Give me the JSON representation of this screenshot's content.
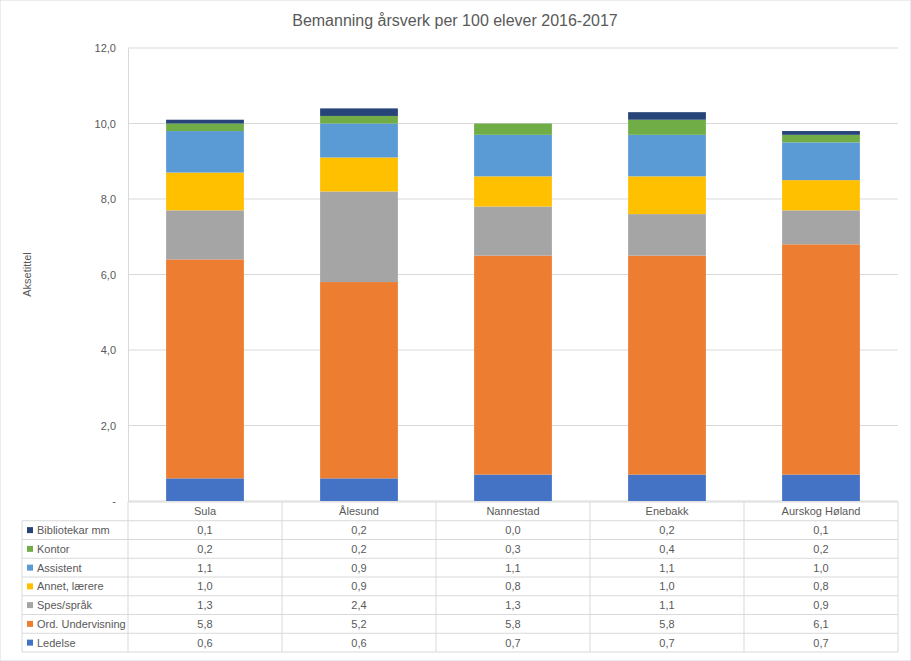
{
  "chart_data": {
    "type": "bar",
    "stacked": true,
    "grid": true,
    "title": "Bemanning årsverk per 100 elever 2016-2017",
    "y_label": "Aksetittel",
    "categories": [
      "Sula",
      "Ålesund",
      "Nannestad",
      "Enebakk",
      "Aurskog Høland"
    ],
    "ylim": [
      0,
      12
    ],
    "yticks": [
      {
        "value": 0,
        "label": "-"
      },
      {
        "value": 2,
        "label": "2,0"
      },
      {
        "value": 4,
        "label": "4,0"
      },
      {
        "value": 6,
        "label": "6,0"
      },
      {
        "value": 8,
        "label": "8,0"
      },
      {
        "value": 10,
        "label": "10,0"
      },
      {
        "value": 12,
        "label": "12,0"
      }
    ],
    "series": [
      {
        "name": "Ledelse",
        "color": "#4472c4",
        "values": [
          0.6,
          0.6,
          0.7,
          0.7,
          0.7
        ],
        "value_labels": [
          "0,6",
          "0,6",
          "0,7",
          "0,7",
          "0,7"
        ]
      },
      {
        "name": "Ord. Undervisning",
        "color": "#ed7d31",
        "values": [
          5.8,
          5.2,
          5.8,
          5.8,
          6.1
        ],
        "value_labels": [
          "5,8",
          "5,2",
          "5,8",
          "5,8",
          "6,1"
        ]
      },
      {
        "name": "Spes/språk",
        "color": "#a5a5a5",
        "values": [
          1.3,
          2.4,
          1.3,
          1.1,
          0.9
        ],
        "value_labels": [
          "1,3",
          "2,4",
          "1,3",
          "1,1",
          "0,9"
        ]
      },
      {
        "name": "Annet, lærere",
        "color": "#ffc000",
        "values": [
          1.0,
          0.9,
          0.8,
          1.0,
          0.8
        ],
        "value_labels": [
          "1,0",
          "0,9",
          "0,8",
          "1,0",
          "0,8"
        ]
      },
      {
        "name": "Assistent",
        "color": "#5b9bd5",
        "values": [
          1.1,
          0.9,
          1.1,
          1.1,
          1.0
        ],
        "value_labels": [
          "1,1",
          "0,9",
          "1,1",
          "1,1",
          "1,0"
        ]
      },
      {
        "name": "Kontor",
        "color": "#70ad47",
        "values": [
          0.2,
          0.2,
          0.3,
          0.4,
          0.2
        ],
        "value_labels": [
          "0,2",
          "0,2",
          "0,3",
          "0,4",
          "0,2"
        ]
      },
      {
        "name": "Bibliotekar mm",
        "color": "#264478",
        "values": [
          0.1,
          0.2,
          0.0,
          0.2,
          0.1
        ],
        "value_labels": [
          "0,1",
          "0,2",
          "0,0",
          "0,2",
          "0,1"
        ]
      }
    ]
  }
}
